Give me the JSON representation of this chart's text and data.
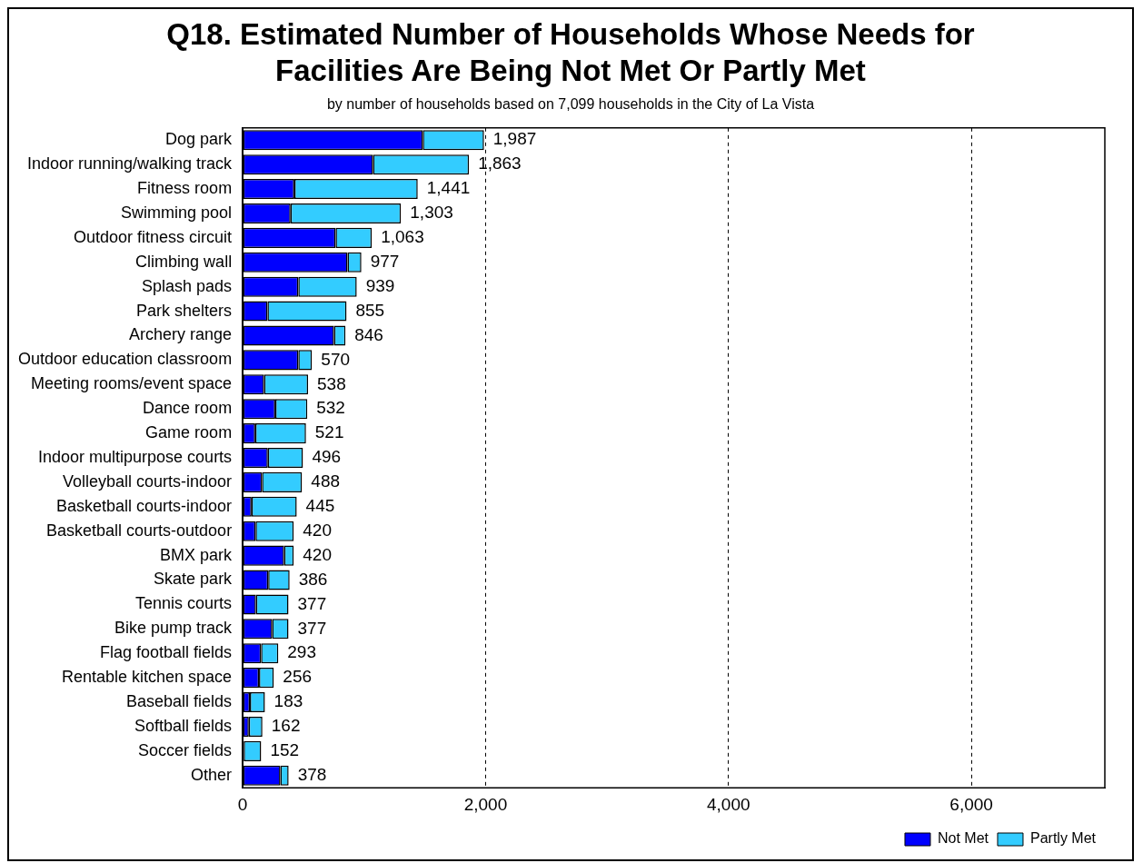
{
  "chart_data": {
    "type": "bar",
    "orientation": "horizontal",
    "stacked": true,
    "title": "Q18. Estimated Number of Households Whose Needs for Facilities Are Being Not Met Or Partly Met",
    "subtitle": "by number of households based on 7,099 households in the City of La Vista",
    "categories": [
      "Dog park",
      "Indoor running/walking track",
      "Fitness room",
      "Swimming pool",
      "Outdoor fitness circuit",
      "Climbing wall",
      "Splash pads",
      "Park shelters",
      "Archery range",
      "Outdoor education classroom",
      "Meeting rooms/event space",
      "Dance room",
      "Game room",
      "Indoor multipurpose courts",
      "Volleyball courts-indoor",
      "Basketball courts-indoor",
      "Basketball courts-outdoor",
      "BMX park",
      "Skate park",
      "Tennis courts",
      "Bike pump track",
      "Flag football fields",
      "Rentable kitchen space",
      "Baseball fields",
      "Softball fields",
      "Soccer fields",
      "Other"
    ],
    "series": [
      {
        "name": "Not Met",
        "color": "#0000ff",
        "values": [
          1483,
          1073,
          425,
          394,
          765,
          863,
          458,
          204,
          752,
          458,
          176,
          268,
          103,
          207,
          159,
          73,
          106,
          341,
          210,
          109,
          243,
          151,
          134,
          59,
          50,
          8,
          310
        ]
      },
      {
        "name": "Partly Met",
        "color": "#33ccff",
        "values": [
          504,
          790,
          1016,
          909,
          298,
          114,
          481,
          651,
          94,
          112,
          362,
          264,
          418,
          289,
          329,
          372,
          314,
          79,
          176,
          268,
          134,
          142,
          122,
          124,
          112,
          144,
          68
        ]
      }
    ],
    "totals": [
      "1,987",
      "1,863",
      "1,441",
      "1,303",
      "1,063",
      "977",
      "939",
      "855",
      "846",
      "570",
      "538",
      "532",
      "521",
      "496",
      "488",
      "445",
      "420",
      "420",
      "386",
      "377",
      "377",
      "293",
      "256",
      "183",
      "162",
      "152",
      "378"
    ],
    "xlim": [
      0,
      7099
    ],
    "xticks": [
      0,
      {
        "value": 2000,
        "label": "2,000"
      },
      {
        "value": 4000,
        "label": "4,000"
      },
      {
        "value": 6000,
        "label": "6,000"
      }
    ],
    "grid": "x",
    "line_style": "dashed",
    "legend": "bottom right"
  }
}
